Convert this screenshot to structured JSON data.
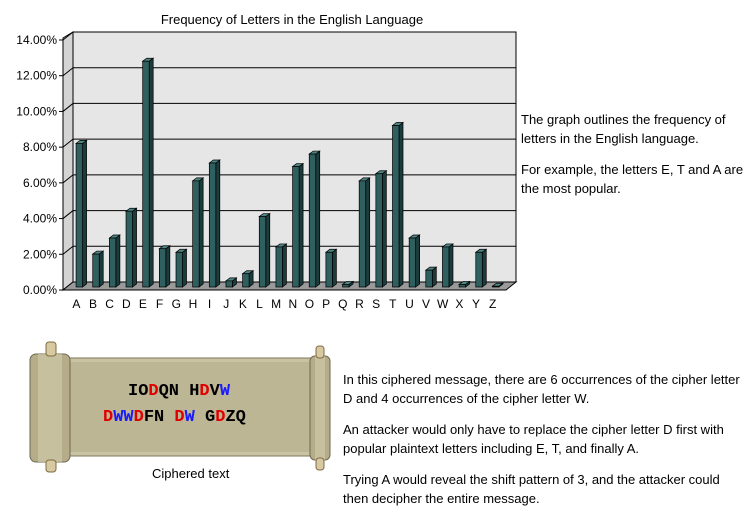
{
  "chart_data": {
    "type": "bar",
    "title": "Frequency of Letters in the English Language",
    "xlabel": "",
    "ylabel": "",
    "ylim": [
      0,
      14
    ],
    "yticks": [
      "0.00%",
      "2.00%",
      "4.00%",
      "6.00%",
      "8.00%",
      "10.00%",
      "12.00%",
      "14.00%"
    ],
    "grid": true,
    "legend": "none",
    "bar_color": "#2f5f5f",
    "categories": [
      "A",
      "B",
      "C",
      "D",
      "E",
      "F",
      "G",
      "H",
      "I",
      "J",
      "K",
      "L",
      "M",
      "N",
      "O",
      "P",
      "Q",
      "R",
      "S",
      "T",
      "U",
      "V",
      "W",
      "X",
      "Y",
      "Z"
    ],
    "values": [
      8.1,
      1.9,
      2.8,
      4.3,
      12.7,
      2.2,
      2.0,
      6.0,
      7.0,
      0.4,
      0.8,
      4.0,
      2.3,
      6.8,
      7.5,
      2.0,
      0.2,
      6.0,
      6.4,
      9.1,
      2.8,
      1.0,
      2.3,
      0.2,
      2.0,
      0.1
    ]
  },
  "chart_description": [
    "The graph outlines the frequency of letters in the English language.",
    "For example, the letters E, T and A are the most popular."
  ],
  "cipher": {
    "line1": [
      {
        "text": "IO",
        "color": "black"
      },
      {
        "text": "D",
        "color": "red"
      },
      {
        "text": "QN H",
        "color": "black"
      },
      {
        "text": "D",
        "color": "red"
      },
      {
        "text": "V",
        "color": "black"
      },
      {
        "text": "W",
        "color": "blue"
      }
    ],
    "line2": [
      {
        "text": "D",
        "color": "red"
      },
      {
        "text": "WW",
        "color": "blue"
      },
      {
        "text": "D",
        "color": "red"
      },
      {
        "text": "FN ",
        "color": "black"
      },
      {
        "text": "D",
        "color": "red"
      },
      {
        "text": "W",
        "color": "blue"
      },
      {
        "text": " G",
        "color": "black"
      },
      {
        "text": "D",
        "color": "red"
      },
      {
        "text": "ZQ",
        "color": "black"
      }
    ],
    "caption": "Ciphered text"
  },
  "message_description": [
    "In this ciphered message, there are 6 occurrences of the cipher letter D and 4 occurrences of the cipher letter W.",
    "An attacker would only have to replace the cipher letter D first with popular plaintext letters including E, T, and finally A.",
    "Trying A would reveal the shift pattern of 3, and the attacker could then decipher the entire message."
  ]
}
